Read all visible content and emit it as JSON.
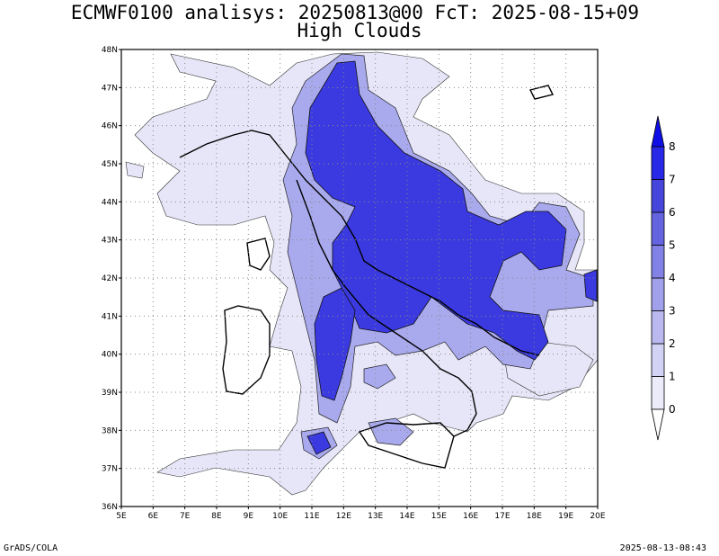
{
  "title_line1": "ECMWF0100 analisys: 20250813@00 FcT: 2025-08-15+09",
  "title_line2": "High Clouds",
  "footer_left": "GrADS/COLA",
  "footer_right": "2025-08-13-08:43",
  "lon_ticks": [
    "5E",
    "6E",
    "7E",
    "8E",
    "9E",
    "10E",
    "11E",
    "12E",
    "13E",
    "14E",
    "15E",
    "16E",
    "17E",
    "18E",
    "19E",
    "20E"
  ],
  "lat_ticks": [
    "36N",
    "37N",
    "38N",
    "39N",
    "40N",
    "41N",
    "42N",
    "43N",
    "44N",
    "45N",
    "46N",
    "47N",
    "48N"
  ],
  "colorbar": {
    "labels": [
      "0",
      "1",
      "2",
      "3",
      "4",
      "5",
      "6",
      "7",
      "8"
    ],
    "colors": [
      "#ebebfa",
      "#d2d2f5",
      "#b9b9f0",
      "#a0a0eb",
      "#8282e6",
      "#6464e1",
      "#4646dc",
      "#2828e6"
    ]
  }
}
